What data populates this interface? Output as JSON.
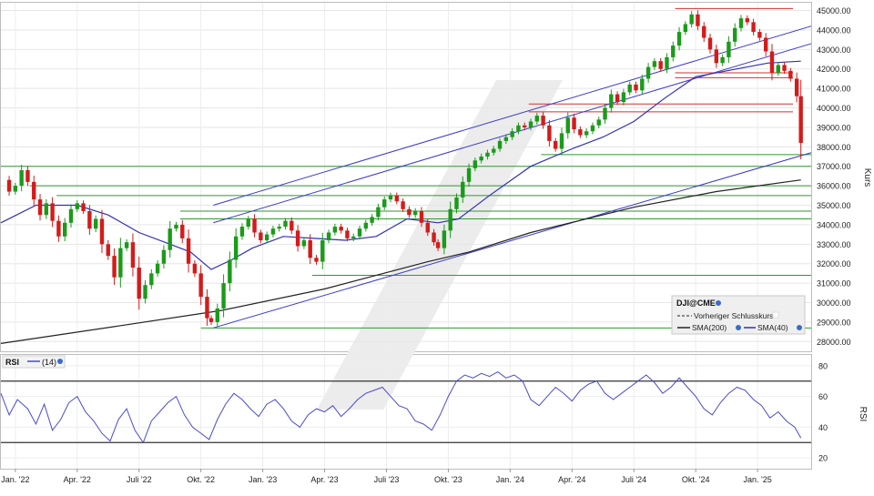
{
  "colors": {
    "up": "#1a9b1a",
    "down": "#d41b1b",
    "candle_body_up": "#2a962a",
    "channel": "#3a3ad0",
    "sma200": "#222222",
    "sma40": "#3030b8",
    "support": "#2e9a2e",
    "resistance": "#d43030",
    "rsi_line": "#4a4ad0",
    "rsi_band": "#333333",
    "watermark": "#e9e9e9"
  },
  "chart_data": [
    {
      "type": "candlestick",
      "instrument": "DJI@CME",
      "ylabel": "Kurs",
      "ylim": [
        27500,
        45400
      ],
      "y_ticks": [
        "45000.00",
        "44000.00",
        "43000.00",
        "42000.00",
        "41000.00",
        "40000.00",
        "39000.00",
        "38000.00",
        "37000.00",
        "36000.00",
        "35000.00",
        "34000.00",
        "33000.00",
        "32000.00",
        "31000.00",
        "30000.00",
        "29000.00",
        "28000.00"
      ],
      "x_labels": [
        "Jan. '22",
        "Apr. '22",
        "Juli '22",
        "Okt. '22",
        "Jan. '23",
        "Apr. '23",
        "Juli '23",
        "Okt. '23",
        "Jan. '24",
        "Apr. '24",
        "Juli '24",
        "Okt. '24",
        "Jan. '25"
      ],
      "x_range_months": [
        -0.7,
        38.6
      ],
      "legend": {
        "title": "DJI@CME",
        "items": [
          "Vorheriger Schlusskurs",
          "SMA(200)",
          "SMA(40)"
        ]
      },
      "close_series": [
        {
          "m": -0.7,
          "v": 36300
        },
        {
          "m": -0.3,
          "v": 35700
        },
        {
          "m": 0.0,
          "v": 36000
        },
        {
          "m": 0.3,
          "v": 36800
        },
        {
          "m": 0.6,
          "v": 36200
        },
        {
          "m": 0.9,
          "v": 35300
        },
        {
          "m": 1.2,
          "v": 34500
        },
        {
          "m": 1.5,
          "v": 35100
        },
        {
          "m": 1.8,
          "v": 34200
        },
        {
          "m": 2.1,
          "v": 33400
        },
        {
          "m": 2.4,
          "v": 34100
        },
        {
          "m": 2.7,
          "v": 34800
        },
        {
          "m": 3.0,
          "v": 35100
        },
        {
          "m": 3.3,
          "v": 34700
        },
        {
          "m": 3.6,
          "v": 33800
        },
        {
          "m": 3.9,
          "v": 34300
        },
        {
          "m": 4.2,
          "v": 33000
        },
        {
          "m": 4.5,
          "v": 32400
        },
        {
          "m": 4.8,
          "v": 31300
        },
        {
          "m": 5.1,
          "v": 32800
        },
        {
          "m": 5.4,
          "v": 33100
        },
        {
          "m": 5.7,
          "v": 31800
        },
        {
          "m": 6.0,
          "v": 30200
        },
        {
          "m": 6.3,
          "v": 30900
        },
        {
          "m": 6.6,
          "v": 31500
        },
        {
          "m": 6.9,
          "v": 32000
        },
        {
          "m": 7.2,
          "v": 32700
        },
        {
          "m": 7.5,
          "v": 33800
        },
        {
          "m": 7.8,
          "v": 34000
        },
        {
          "m": 8.1,
          "v": 33300
        },
        {
          "m": 8.4,
          "v": 32000
        },
        {
          "m": 8.7,
          "v": 31500
        },
        {
          "m": 9.0,
          "v": 30300
        },
        {
          "m": 9.3,
          "v": 29200
        },
        {
          "m": 9.5,
          "v": 29000
        },
        {
          "m": 9.8,
          "v": 29700
        },
        {
          "m": 10.1,
          "v": 31000
        },
        {
          "m": 10.4,
          "v": 32200
        },
        {
          "m": 10.7,
          "v": 33400
        },
        {
          "m": 11.0,
          "v": 33900
        },
        {
          "m": 11.3,
          "v": 34300
        },
        {
          "m": 11.6,
          "v": 33600
        },
        {
          "m": 11.9,
          "v": 33200
        },
        {
          "m": 12.2,
          "v": 33500
        },
        {
          "m": 12.5,
          "v": 33800
        },
        {
          "m": 12.8,
          "v": 33900
        },
        {
          "m": 13.1,
          "v": 34200
        },
        {
          "m": 13.4,
          "v": 33700
        },
        {
          "m": 13.7,
          "v": 32900
        },
        {
          "m": 14.0,
          "v": 33200
        },
        {
          "m": 14.3,
          "v": 32300
        },
        {
          "m": 14.6,
          "v": 32100
        },
        {
          "m": 14.9,
          "v": 33200
        },
        {
          "m": 15.2,
          "v": 33600
        },
        {
          "m": 15.5,
          "v": 33900
        },
        {
          "m": 15.8,
          "v": 33700
        },
        {
          "m": 16.1,
          "v": 33300
        },
        {
          "m": 16.4,
          "v": 33400
        },
        {
          "m": 16.7,
          "v": 33800
        },
        {
          "m": 17.0,
          "v": 34100
        },
        {
          "m": 17.3,
          "v": 34400
        },
        {
          "m": 17.6,
          "v": 34900
        },
        {
          "m": 17.9,
          "v": 35300
        },
        {
          "m": 18.2,
          "v": 35500
        },
        {
          "m": 18.5,
          "v": 35200
        },
        {
          "m": 18.8,
          "v": 34800
        },
        {
          "m": 19.1,
          "v": 34500
        },
        {
          "m": 19.4,
          "v": 34700
        },
        {
          "m": 19.7,
          "v": 34100
        },
        {
          "m": 20.0,
          "v": 33600
        },
        {
          "m": 20.3,
          "v": 33100
        },
        {
          "m": 20.5,
          "v": 32800
        },
        {
          "m": 20.8,
          "v": 33700
        },
        {
          "m": 21.1,
          "v": 34800
        },
        {
          "m": 21.4,
          "v": 35400
        },
        {
          "m": 21.7,
          "v": 36200
        },
        {
          "m": 22.0,
          "v": 36900
        },
        {
          "m": 22.3,
          "v": 37300
        },
        {
          "m": 22.6,
          "v": 37500
        },
        {
          "m": 22.9,
          "v": 37700
        },
        {
          "m": 23.2,
          "v": 37900
        },
        {
          "m": 23.5,
          "v": 38300
        },
        {
          "m": 23.8,
          "v": 38500
        },
        {
          "m": 24.1,
          "v": 38800
        },
        {
          "m": 24.4,
          "v": 39100
        },
        {
          "m": 24.7,
          "v": 39000
        },
        {
          "m": 25.0,
          "v": 39300
        },
        {
          "m": 25.3,
          "v": 39600
        },
        {
          "m": 25.6,
          "v": 39100
        },
        {
          "m": 25.9,
          "v": 38300
        },
        {
          "m": 26.2,
          "v": 37900
        },
        {
          "m": 26.5,
          "v": 38700
        },
        {
          "m": 26.8,
          "v": 39500
        },
        {
          "m": 27.1,
          "v": 38900
        },
        {
          "m": 27.4,
          "v": 38600
        },
        {
          "m": 27.7,
          "v": 38800
        },
        {
          "m": 28.0,
          "v": 39100
        },
        {
          "m": 28.3,
          "v": 39400
        },
        {
          "m": 28.6,
          "v": 40000
        },
        {
          "m": 28.9,
          "v": 40700
        },
        {
          "m": 29.2,
          "v": 40300
        },
        {
          "m": 29.5,
          "v": 40800
        },
        {
          "m": 29.8,
          "v": 41200
        },
        {
          "m": 30.1,
          "v": 40900
        },
        {
          "m": 30.4,
          "v": 41500
        },
        {
          "m": 30.7,
          "v": 42100
        },
        {
          "m": 31.0,
          "v": 42400
        },
        {
          "m": 31.3,
          "v": 42000
        },
        {
          "m": 31.6,
          "v": 42600
        },
        {
          "m": 31.9,
          "v": 43200
        },
        {
          "m": 32.2,
          "v": 43900
        },
        {
          "m": 32.5,
          "v": 44300
        },
        {
          "m": 32.8,
          "v": 44800
        },
        {
          "m": 33.1,
          "v": 44200
        },
        {
          "m": 33.4,
          "v": 43600
        },
        {
          "m": 33.7,
          "v": 43000
        },
        {
          "m": 34.0,
          "v": 42300
        },
        {
          "m": 34.3,
          "v": 42600
        },
        {
          "m": 34.6,
          "v": 43400
        },
        {
          "m": 34.9,
          "v": 44100
        },
        {
          "m": 35.2,
          "v": 44600
        },
        {
          "m": 35.5,
          "v": 44400
        },
        {
          "m": 35.8,
          "v": 43900
        },
        {
          "m": 36.1,
          "v": 43600
        },
        {
          "m": 36.4,
          "v": 42900
        },
        {
          "m": 36.7,
          "v": 41800
        },
        {
          "m": 37.0,
          "v": 42200
        },
        {
          "m": 37.3,
          "v": 41900
        },
        {
          "m": 37.6,
          "v": 41500
        },
        {
          "m": 37.9,
          "v": 40600
        },
        {
          "m": 38.1,
          "v": 38200
        }
      ],
      "sma200": [
        {
          "m": -0.7,
          "v": 27900
        },
        {
          "m": 5,
          "v": 28800
        },
        {
          "m": 10,
          "v": 29600
        },
        {
          "m": 15,
          "v": 30700
        },
        {
          "m": 20,
          "v": 32100
        },
        {
          "m": 22,
          "v": 32600
        },
        {
          "m": 25,
          "v": 33600
        },
        {
          "m": 30,
          "v": 34900
        },
        {
          "m": 34,
          "v": 35700
        },
        {
          "m": 38.1,
          "v": 36300
        }
      ],
      "sma40": [
        {
          "m": -0.7,
          "v": 34100
        },
        {
          "m": 1,
          "v": 35000
        },
        {
          "m": 3,
          "v": 35000
        },
        {
          "m": 4.5,
          "v": 34500
        },
        {
          "m": 6,
          "v": 33600
        },
        {
          "m": 7.5,
          "v": 33000
        },
        {
          "m": 8.5,
          "v": 32600
        },
        {
          "m": 9.5,
          "v": 31700
        },
        {
          "m": 10.5,
          "v": 32200
        },
        {
          "m": 11.5,
          "v": 32800
        },
        {
          "m": 13,
          "v": 33400
        },
        {
          "m": 14.5,
          "v": 33300
        },
        {
          "m": 16,
          "v": 33200
        },
        {
          "m": 17.5,
          "v": 33400
        },
        {
          "m": 19,
          "v": 34300
        },
        {
          "m": 20.5,
          "v": 34100
        },
        {
          "m": 21.5,
          "v": 34300
        },
        {
          "m": 23,
          "v": 35500
        },
        {
          "m": 25,
          "v": 37000
        },
        {
          "m": 27,
          "v": 37900
        },
        {
          "m": 28.5,
          "v": 38500
        },
        {
          "m": 30,
          "v": 39300
        },
        {
          "m": 31.5,
          "v": 40500
        },
        {
          "m": 33,
          "v": 41600
        },
        {
          "m": 35,
          "v": 42000
        },
        {
          "m": 36.5,
          "v": 42300
        },
        {
          "m": 38.1,
          "v": 42400
        }
      ],
      "channel_lines": [
        {
          "from": {
            "m": 9.6,
            "v": 28700
          },
          "to": {
            "m": 38.6,
            "v": 37700
          }
        },
        {
          "from": {
            "m": 9.6,
            "v": 35000
          },
          "to": {
            "m": 38.6,
            "v": 44200
          }
        },
        {
          "from": {
            "m": 9.6,
            "v": 34100
          },
          "to": {
            "m": 38.6,
            "v": 43300
          }
        }
      ],
      "support_lines": [
        {
          "v": 37000,
          "from_m": -0.7
        },
        {
          "v": 37600,
          "from_m": 25.5
        },
        {
          "v": 36000,
          "from_m": 0.7
        },
        {
          "v": 35500,
          "from_m": 2.0
        },
        {
          "v": 34700,
          "from_m": 8.0
        },
        {
          "v": 34300,
          "from_m": 8.0
        },
        {
          "v": 31400,
          "from_m": 14.4
        },
        {
          "v": 28700,
          "from_m": 9.0
        }
      ],
      "resistance_lines": [
        {
          "v": 45100,
          "from_m": 32.0
        },
        {
          "v": 41800,
          "from_m": 32.0
        },
        {
          "v": 41550,
          "from_m": 32.0
        },
        {
          "v": 40200,
          "from_m": 24.9
        },
        {
          "v": 39800,
          "from_m": 24.9
        }
      ]
    },
    {
      "type": "line",
      "title": "RSI",
      "legend": "(14)",
      "ylabel": "RSI",
      "ylim": [
        13,
        87
      ],
      "y_ticks": [
        80,
        60,
        40,
        20
      ],
      "bands": [
        70,
        30
      ],
      "series": [
        {
          "m": -0.7,
          "v": 62
        },
        {
          "m": -0.3,
          "v": 48
        },
        {
          "m": 0.1,
          "v": 58
        },
        {
          "m": 0.6,
          "v": 52
        },
        {
          "m": 1.0,
          "v": 42
        },
        {
          "m": 1.4,
          "v": 55
        },
        {
          "m": 1.8,
          "v": 38
        },
        {
          "m": 2.2,
          "v": 45
        },
        {
          "m": 2.6,
          "v": 56
        },
        {
          "m": 3.0,
          "v": 60
        },
        {
          "m": 3.4,
          "v": 50
        },
        {
          "m": 3.8,
          "v": 44
        },
        {
          "m": 4.2,
          "v": 36
        },
        {
          "m": 4.6,
          "v": 31
        },
        {
          "m": 5.0,
          "v": 45
        },
        {
          "m": 5.4,
          "v": 52
        },
        {
          "m": 5.8,
          "v": 38
        },
        {
          "m": 6.2,
          "v": 30
        },
        {
          "m": 6.6,
          "v": 44
        },
        {
          "m": 7.0,
          "v": 50
        },
        {
          "m": 7.4,
          "v": 56
        },
        {
          "m": 7.8,
          "v": 60
        },
        {
          "m": 8.2,
          "v": 48
        },
        {
          "m": 8.6,
          "v": 40
        },
        {
          "m": 9.0,
          "v": 36
        },
        {
          "m": 9.4,
          "v": 32
        },
        {
          "m": 9.8,
          "v": 45
        },
        {
          "m": 10.2,
          "v": 55
        },
        {
          "m": 10.6,
          "v": 62
        },
        {
          "m": 11.0,
          "v": 58
        },
        {
          "m": 11.4,
          "v": 52
        },
        {
          "m": 11.8,
          "v": 47
        },
        {
          "m": 12.2,
          "v": 55
        },
        {
          "m": 12.6,
          "v": 58
        },
        {
          "m": 13.0,
          "v": 52
        },
        {
          "m": 13.4,
          "v": 44
        },
        {
          "m": 13.8,
          "v": 40
        },
        {
          "m": 14.2,
          "v": 48
        },
        {
          "m": 14.6,
          "v": 52
        },
        {
          "m": 15.0,
          "v": 50
        },
        {
          "m": 15.4,
          "v": 54
        },
        {
          "m": 15.8,
          "v": 47
        },
        {
          "m": 16.2,
          "v": 52
        },
        {
          "m": 16.6,
          "v": 58
        },
        {
          "m": 17.0,
          "v": 62
        },
        {
          "m": 17.4,
          "v": 64
        },
        {
          "m": 17.8,
          "v": 66
        },
        {
          "m": 18.2,
          "v": 60
        },
        {
          "m": 18.6,
          "v": 54
        },
        {
          "m": 19.0,
          "v": 52
        },
        {
          "m": 19.4,
          "v": 44
        },
        {
          "m": 19.8,
          "v": 42
        },
        {
          "m": 20.2,
          "v": 38
        },
        {
          "m": 20.6,
          "v": 48
        },
        {
          "m": 21.0,
          "v": 60
        },
        {
          "m": 21.4,
          "v": 70
        },
        {
          "m": 21.8,
          "v": 74
        },
        {
          "m": 22.2,
          "v": 72
        },
        {
          "m": 22.6,
          "v": 75
        },
        {
          "m": 23.0,
          "v": 73
        },
        {
          "m": 23.4,
          "v": 76
        },
        {
          "m": 23.8,
          "v": 72
        },
        {
          "m": 24.2,
          "v": 74
        },
        {
          "m": 24.6,
          "v": 70
        },
        {
          "m": 25.0,
          "v": 58
        },
        {
          "m": 25.4,
          "v": 54
        },
        {
          "m": 25.8,
          "v": 60
        },
        {
          "m": 26.2,
          "v": 66
        },
        {
          "m": 26.6,
          "v": 62
        },
        {
          "m": 27.0,
          "v": 57
        },
        {
          "m": 27.4,
          "v": 64
        },
        {
          "m": 27.8,
          "v": 68
        },
        {
          "m": 28.2,
          "v": 70
        },
        {
          "m": 28.6,
          "v": 62
        },
        {
          "m": 29.0,
          "v": 58
        },
        {
          "m": 29.4,
          "v": 62
        },
        {
          "m": 29.8,
          "v": 66
        },
        {
          "m": 30.2,
          "v": 70
        },
        {
          "m": 30.6,
          "v": 74
        },
        {
          "m": 31.0,
          "v": 69
        },
        {
          "m": 31.4,
          "v": 62
        },
        {
          "m": 31.8,
          "v": 66
        },
        {
          "m": 32.2,
          "v": 72
        },
        {
          "m": 32.6,
          "v": 66
        },
        {
          "m": 33.0,
          "v": 60
        },
        {
          "m": 33.4,
          "v": 52
        },
        {
          "m": 33.8,
          "v": 48
        },
        {
          "m": 34.2,
          "v": 56
        },
        {
          "m": 34.6,
          "v": 62
        },
        {
          "m": 35.0,
          "v": 66
        },
        {
          "m": 35.4,
          "v": 64
        },
        {
          "m": 35.8,
          "v": 58
        },
        {
          "m": 36.2,
          "v": 54
        },
        {
          "m": 36.6,
          "v": 46
        },
        {
          "m": 37.0,
          "v": 50
        },
        {
          "m": 37.4,
          "v": 44
        },
        {
          "m": 37.8,
          "v": 40
        },
        {
          "m": 38.1,
          "v": 33
        }
      ]
    }
  ]
}
